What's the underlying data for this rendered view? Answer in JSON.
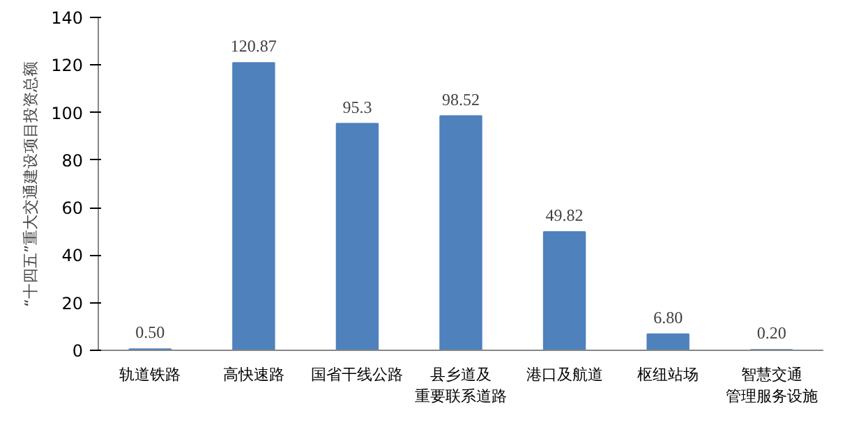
{
  "chart_data": {
    "type": "bar",
    "ylabel": "“十四五”重大交通建设项目投资总额",
    "categories": [
      "轨道铁路",
      "高快速路",
      "国省干线公路",
      "县乡道及重要联系道路",
      "港口及航道",
      "枢纽站场",
      "智慧交通管理服务设施"
    ],
    "values": [
      0.5,
      120.87,
      95.3,
      98.52,
      49.82,
      6.8,
      0.2
    ],
    "value_labels": [
      "0.50",
      "120.87",
      "95.3",
      "98.52",
      "49.82",
      "6.80",
      "0.20"
    ],
    "color": "#4f81bd",
    "ylim": [
      0,
      140
    ],
    "yticks": [
      0,
      20,
      40,
      60,
      80,
      100,
      120,
      140
    ],
    "grid": false
  }
}
